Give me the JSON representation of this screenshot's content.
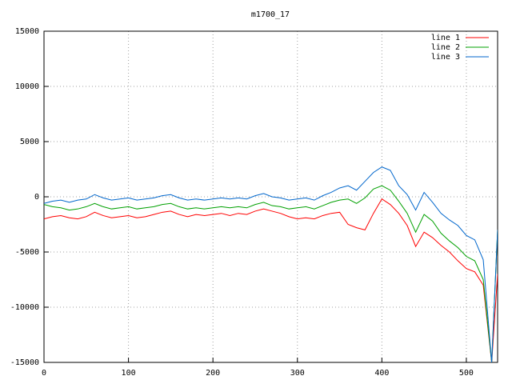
{
  "chart_data": {
    "type": "line",
    "title": "m1700_17",
    "x": [
      0,
      10,
      20,
      30,
      40,
      50,
      60,
      70,
      80,
      90,
      100,
      110,
      120,
      130,
      140,
      150,
      160,
      170,
      180,
      190,
      200,
      210,
      220,
      230,
      240,
      250,
      260,
      270,
      280,
      290,
      300,
      310,
      320,
      330,
      340,
      350,
      360,
      370,
      380,
      390,
      400,
      410,
      420,
      430,
      440,
      450,
      460,
      470,
      480,
      490,
      500,
      510,
      520,
      530,
      537
    ],
    "series": [
      {
        "name": "line 1",
        "color": "#ff0000",
        "values": [
          -2000,
          -1800,
          -1700,
          -1900,
          -2000,
          -1800,
          -1400,
          -1700,
          -1900,
          -1800,
          -1700,
          -1900,
          -1800,
          -1600,
          -1400,
          -1300,
          -1600,
          -1800,
          -1600,
          -1700,
          -1600,
          -1500,
          -1700,
          -1500,
          -1600,
          -1300,
          -1100,
          -1300,
          -1500,
          -1800,
          -2000,
          -1900,
          -2000,
          -1700,
          -1500,
          -1400,
          -2500,
          -2800,
          -3000,
          -1500,
          -200,
          -700,
          -1500,
          -2600,
          -4500,
          -3200,
          -3700,
          -4400,
          -5000,
          -5800,
          -6500,
          -6800,
          -8000,
          -15000,
          -7000
        ]
      },
      {
        "name": "line 2",
        "color": "#00a000",
        "values": [
          -700,
          -900,
          -1000,
          -1200,
          -1100,
          -900,
          -600,
          -900,
          -1100,
          -1000,
          -900,
          -1100,
          -1000,
          -900,
          -700,
          -600,
          -900,
          -1100,
          -1000,
          -1100,
          -1000,
          -900,
          -1000,
          -900,
          -1000,
          -700,
          -500,
          -800,
          -900,
          -1100,
          -1000,
          -900,
          -1100,
          -800,
          -500,
          -300,
          -200,
          -600,
          -100,
          700,
          1000,
          600,
          -400,
          -1500,
          -3200,
          -1600,
          -2200,
          -3300,
          -4000,
          -4600,
          -5400,
          -5800,
          -7500,
          -15000,
          -3000
        ]
      },
      {
        "name": "line 3",
        "color": "#0066cc",
        "values": [
          -600,
          -400,
          -300,
          -500,
          -300,
          -200,
          200,
          -100,
          -300,
          -200,
          -100,
          -300,
          -200,
          -100,
          100,
          200,
          -100,
          -300,
          -200,
          -300,
          -200,
          -100,
          -200,
          -100,
          -200,
          100,
          300,
          0,
          -100,
          -300,
          -200,
          -100,
          -300,
          100,
          400,
          800,
          1000,
          600,
          1400,
          2200,
          2700,
          2400,
          1000,
          200,
          -1200,
          400,
          -500,
          -1500,
          -2100,
          -2600,
          -3500,
          -3900,
          -5700,
          -15000,
          -3000
        ]
      }
    ],
    "xlim": [
      0,
      537
    ],
    "ylim": [
      -15000,
      15000
    ],
    "xticks": [
      0,
      100,
      200,
      300,
      400,
      500
    ],
    "yticks": [
      -15000,
      -10000,
      -5000,
      0,
      5000,
      10000,
      15000
    ],
    "grid": true,
    "legend": "top-right"
  }
}
